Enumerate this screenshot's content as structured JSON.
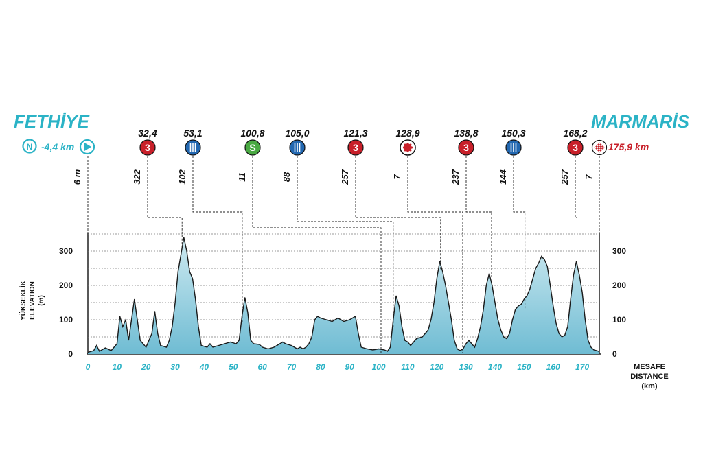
{
  "start_city": "FETHİYE",
  "finish_city": "MARMARİS",
  "neutral_icon": "N",
  "neutral_distance": "-4,4 km",
  "finish_distance": "175,9 km",
  "colors": {
    "cyan": "#2bb3c6",
    "red": "#c8202a",
    "blue": "#2267b0",
    "green": "#49a942",
    "fill_top": "#a8dbe7",
    "fill_bottom": "#7cc4d9",
    "line": "#1a1a1a"
  },
  "chart_data": {
    "type": "area",
    "title": "",
    "ylabel_tr": "YÜKSEKLİK",
    "ylabel_en": "ELEVATION",
    "ylabel_unit": "(m)",
    "xlabel_tr": "MESAFE",
    "xlabel_en": "DISTANCE",
    "xlabel_unit": "(km)",
    "xlim": [
      0,
      176
    ],
    "ylim": [
      0,
      350
    ],
    "x_ticks": [
      "0",
      "10",
      "20",
      "30",
      "40",
      "50",
      "60",
      "70",
      "80",
      "90",
      "100",
      "110",
      "120",
      "130",
      "140",
      "150",
      "160",
      "170"
    ],
    "y_ticks": [
      "0",
      "100",
      "200",
      "300"
    ],
    "grid": "horizontal dashed every 50 m",
    "elevation_profile": [
      [
        0,
        5
      ],
      [
        2,
        10
      ],
      [
        3,
        25
      ],
      [
        4,
        8
      ],
      [
        6,
        18
      ],
      [
        8,
        10
      ],
      [
        10,
        30
      ],
      [
        11,
        110
      ],
      [
        12,
        80
      ],
      [
        13,
        100
      ],
      [
        14,
        40
      ],
      [
        16,
        160
      ],
      [
        17,
        100
      ],
      [
        18,
        40
      ],
      [
        20,
        20
      ],
      [
        22,
        60
      ],
      [
        23,
        125
      ],
      [
        24,
        60
      ],
      [
        25,
        25
      ],
      [
        27,
        20
      ],
      [
        28,
        40
      ],
      [
        29,
        80
      ],
      [
        30,
        150
      ],
      [
        31,
        240
      ],
      [
        32,
        290
      ],
      [
        33,
        340
      ],
      [
        34,
        300
      ],
      [
        35,
        240
      ],
      [
        36,
        220
      ],
      [
        37,
        160
      ],
      [
        38,
        80
      ],
      [
        39,
        25
      ],
      [
        41,
        20
      ],
      [
        42,
        30
      ],
      [
        43,
        20
      ],
      [
        45,
        25
      ],
      [
        47,
        30
      ],
      [
        49,
        35
      ],
      [
        51,
        30
      ],
      [
        52,
        40
      ],
      [
        53,
        110
      ],
      [
        54,
        165
      ],
      [
        55,
        120
      ],
      [
        56,
        40
      ],
      [
        57,
        30
      ],
      [
        59,
        28
      ],
      [
        60,
        20
      ],
      [
        62,
        15
      ],
      [
        64,
        20
      ],
      [
        66,
        30
      ],
      [
        67,
        35
      ],
      [
        68,
        30
      ],
      [
        70,
        25
      ],
      [
        71,
        20
      ],
      [
        72,
        15
      ],
      [
        73,
        20
      ],
      [
        74,
        15
      ],
      [
        75,
        20
      ],
      [
        76,
        30
      ],
      [
        77,
        50
      ],
      [
        78,
        100
      ],
      [
        79,
        110
      ],
      [
        80,
        105
      ],
      [
        82,
        100
      ],
      [
        84,
        95
      ],
      [
        85,
        100
      ],
      [
        86,
        105
      ],
      [
        87,
        100
      ],
      [
        88,
        95
      ],
      [
        90,
        100
      ],
      [
        91,
        105
      ],
      [
        92,
        110
      ],
      [
        93,
        60
      ],
      [
        94,
        20
      ],
      [
        96,
        15
      ],
      [
        98,
        12
      ],
      [
        100,
        15
      ],
      [
        102,
        12
      ],
      [
        103,
        8
      ],
      [
        104,
        20
      ],
      [
        105,
        100
      ],
      [
        106,
        170
      ],
      [
        107,
        140
      ],
      [
        108,
        80
      ],
      [
        109,
        40
      ],
      [
        110,
        35
      ],
      [
        111,
        25
      ],
      [
        113,
        45
      ],
      [
        115,
        50
      ],
      [
        116,
        60
      ],
      [
        117,
        70
      ],
      [
        118,
        100
      ],
      [
        119,
        150
      ],
      [
        120,
        220
      ],
      [
        121,
        270
      ],
      [
        122,
        240
      ],
      [
        123,
        200
      ],
      [
        124,
        150
      ],
      [
        125,
        100
      ],
      [
        126,
        40
      ],
      [
        127,
        15
      ],
      [
        128,
        10
      ],
      [
        129,
        15
      ],
      [
        130,
        30
      ],
      [
        131,
        40
      ],
      [
        133,
        20
      ],
      [
        134,
        45
      ],
      [
        135,
        80
      ],
      [
        136,
        130
      ],
      [
        137,
        200
      ],
      [
        138,
        235
      ],
      [
        139,
        200
      ],
      [
        140,
        150
      ],
      [
        141,
        100
      ],
      [
        142,
        70
      ],
      [
        143,
        50
      ],
      [
        144,
        45
      ],
      [
        145,
        60
      ],
      [
        146,
        100
      ],
      [
        147,
        130
      ],
      [
        148,
        140
      ],
      [
        149,
        145
      ],
      [
        150,
        160
      ],
      [
        151,
        170
      ],
      [
        152,
        190
      ],
      [
        153,
        220
      ],
      [
        154,
        250
      ],
      [
        155,
        265
      ],
      [
        156,
        285
      ],
      [
        157,
        275
      ],
      [
        158,
        255
      ],
      [
        159,
        200
      ],
      [
        160,
        140
      ],
      [
        161,
        90
      ],
      [
        162,
        60
      ],
      [
        163,
        50
      ],
      [
        164,
        55
      ],
      [
        165,
        80
      ],
      [
        166,
        160
      ],
      [
        167,
        230
      ],
      [
        168,
        270
      ],
      [
        169,
        230
      ],
      [
        170,
        180
      ],
      [
        171,
        100
      ],
      [
        172,
        40
      ],
      [
        173,
        20
      ],
      [
        174,
        12
      ],
      [
        175,
        10
      ],
      [
        175.9,
        7
      ]
    ],
    "waypoints": [
      {
        "km": "0",
        "icon": "start-flag",
        "elev": "6 m"
      },
      {
        "km": "32,4",
        "icon": "climb-cat-3",
        "label": "3",
        "elev": "322"
      },
      {
        "km": "53,1",
        "icon": "feed-zone",
        "elev": "102"
      },
      {
        "km": "100,8",
        "icon": "sprint",
        "label": "S",
        "elev": "11"
      },
      {
        "km": "105,0",
        "icon": "feed-zone",
        "elev": "88"
      },
      {
        "km": "121,3",
        "icon": "climb-cat-3",
        "label": "3",
        "elev": "257"
      },
      {
        "km": "128,9",
        "icon": "bonus-sprint",
        "elev": "7"
      },
      {
        "km": "138,8",
        "icon": "climb-cat-3",
        "label": "3",
        "elev": "237"
      },
      {
        "km": "150,3",
        "icon": "feed-zone",
        "elev": "144"
      },
      {
        "km": "168,2",
        "icon": "climb-cat-3",
        "label": "3",
        "elev": "257"
      },
      {
        "km": "175,9",
        "icon": "finish-flag",
        "elev": "7"
      }
    ]
  }
}
